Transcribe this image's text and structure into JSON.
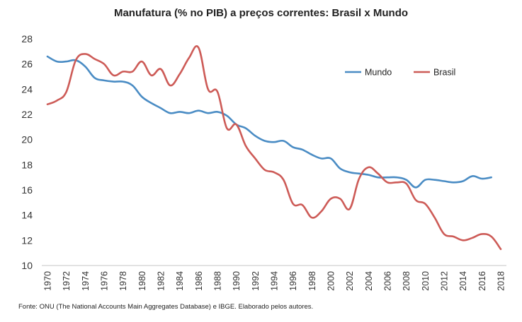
{
  "chart_data": {
    "type": "line",
    "title": "Manufatura (% no PIB) a preços correntes: Brasil x Mundo",
    "xlabel": "",
    "ylabel": "",
    "ylim": [
      10,
      28
    ],
    "yticks": [
      10,
      12,
      14,
      16,
      18,
      20,
      22,
      24,
      26,
      28
    ],
    "xlim": [
      1970,
      2018
    ],
    "xticks": [
      1970,
      1972,
      1974,
      1976,
      1978,
      1980,
      1982,
      1984,
      1986,
      1988,
      1990,
      1992,
      1994,
      1996,
      1998,
      2000,
      2002,
      2004,
      2006,
      2008,
      2010,
      2012,
      2014,
      2016,
      2018
    ],
    "grid": false,
    "legend_position": "top-right",
    "series": [
      {
        "name": "Mundo",
        "color": "#4a8cc4",
        "x": [
          1970,
          1971,
          1972,
          1973,
          1974,
          1975,
          1976,
          1977,
          1978,
          1979,
          1980,
          1981,
          1982,
          1983,
          1984,
          1985,
          1986,
          1987,
          1988,
          1989,
          1990,
          1991,
          1992,
          1993,
          1994,
          1995,
          1996,
          1997,
          1998,
          1999,
          2000,
          2001,
          2002,
          2003,
          2004,
          2005,
          2006,
          2007,
          2008,
          2009,
          2010,
          2011,
          2012,
          2013,
          2014,
          2015,
          2016,
          2017
        ],
        "values": [
          26.6,
          26.2,
          26.2,
          26.3,
          25.8,
          24.9,
          24.7,
          24.6,
          24.6,
          24.3,
          23.4,
          22.9,
          22.5,
          22.1,
          22.2,
          22.1,
          22.3,
          22.1,
          22.2,
          21.9,
          21.2,
          20.9,
          20.3,
          19.9,
          19.8,
          19.9,
          19.4,
          19.2,
          18.8,
          18.5,
          18.5,
          17.7,
          17.4,
          17.3,
          17.2,
          17.0,
          17.0,
          17.0,
          16.8,
          16.2,
          16.8,
          16.8,
          16.7,
          16.6,
          16.7,
          17.1,
          16.9,
          17.0
        ]
      },
      {
        "name": "Brasil",
        "color": "#cd5b57",
        "x": [
          1970,
          1971,
          1972,
          1973,
          1974,
          1975,
          1976,
          1977,
          1978,
          1979,
          1980,
          1981,
          1982,
          1983,
          1984,
          1985,
          1986,
          1987,
          1988,
          1989,
          1990,
          1991,
          1992,
          1993,
          1994,
          1995,
          1996,
          1997,
          1998,
          1999,
          2000,
          2001,
          2002,
          2003,
          2004,
          2005,
          2006,
          2007,
          2008,
          2009,
          2010,
          2011,
          2012,
          2013,
          2014,
          2015,
          2016,
          2017,
          2018
        ],
        "values": [
          22.8,
          23.1,
          23.8,
          26.3,
          26.8,
          26.4,
          26.0,
          25.1,
          25.4,
          25.4,
          26.2,
          25.1,
          25.6,
          24.3,
          25.2,
          26.5,
          27.3,
          24.0,
          23.8,
          20.9,
          21.2,
          19.5,
          18.5,
          17.6,
          17.4,
          16.8,
          14.9,
          14.8,
          13.8,
          14.3,
          15.3,
          15.3,
          14.5,
          16.9,
          17.8,
          17.3,
          16.6,
          16.6,
          16.5,
          15.2,
          14.9,
          13.8,
          12.5,
          12.3,
          12.0,
          12.2,
          12.5,
          12.3,
          11.3
        ]
      }
    ],
    "axis_color": "#d9d9d9",
    "source": "Fonte: ONU (The National Accounts Main Aggregates Database) e IBGE. Elaborado pelos autores."
  }
}
